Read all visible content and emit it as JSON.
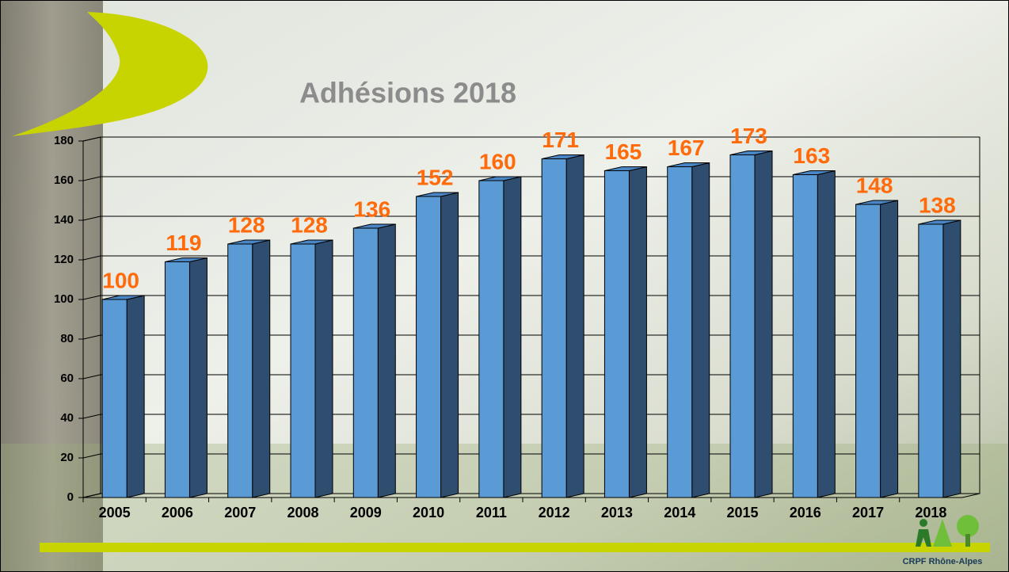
{
  "chart_data": {
    "type": "bar",
    "title": "Adhésions 2018",
    "categories": [
      "2005",
      "2006",
      "2007",
      "2008",
      "2009",
      "2010",
      "2011",
      "2012",
      "2013",
      "2014",
      "2015",
      "2016",
      "2017",
      "2018"
    ],
    "values": [
      100,
      119,
      128,
      128,
      136,
      152,
      160,
      171,
      165,
      167,
      173,
      163,
      148,
      138
    ],
    "color": "#5b9bd5",
    "side_color": "#2f4d6e",
    "top_color": "#4a86c4",
    "label_color": "#ff6a0a",
    "ylim": [
      0,
      180
    ],
    "yticks": [
      0,
      20,
      40,
      60,
      80,
      100,
      120,
      140,
      160,
      180
    ],
    "grid": true
  },
  "footer": {
    "text": "CRPF Rhône-Alpes"
  }
}
